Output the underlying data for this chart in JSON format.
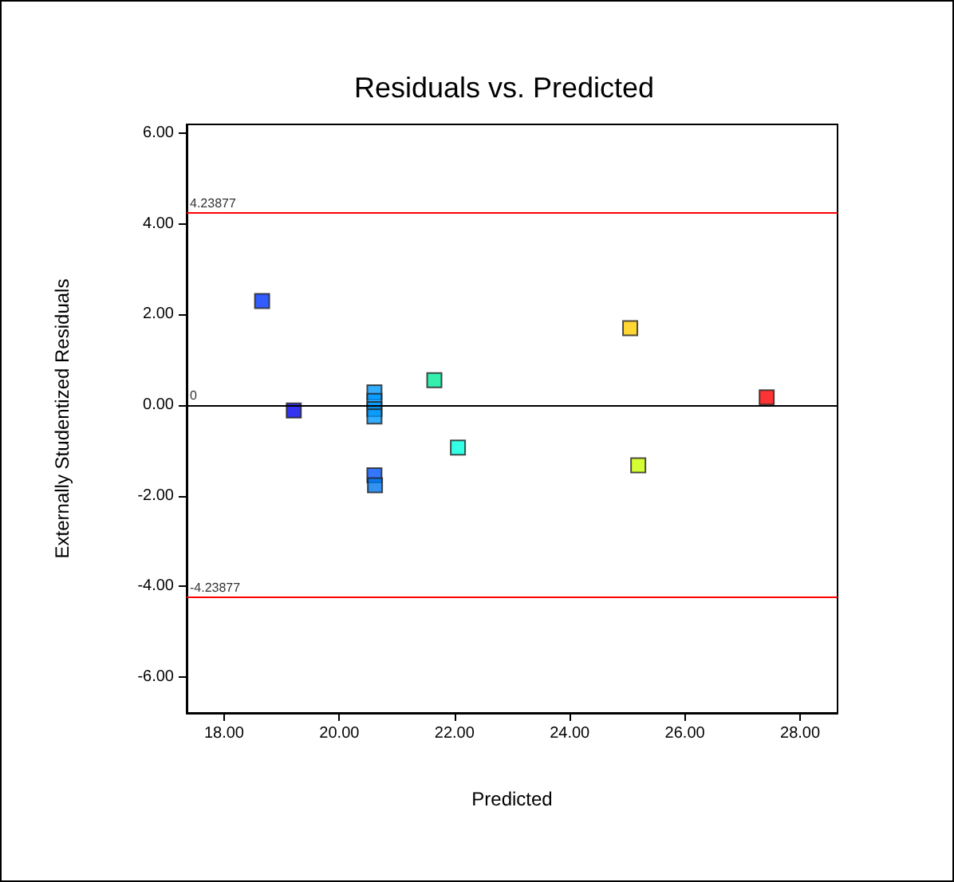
{
  "chart_data": {
    "type": "scatter",
    "title": "Residuals vs. Predicted",
    "xlabel": "Predicted",
    "ylabel": "Externally Studentized Residuals",
    "x": [
      18.66,
      19.21,
      20.61,
      20.61,
      20.61,
      20.61,
      21.65,
      22.06,
      25.05,
      27.42,
      25.19,
      20.61,
      20.62
    ],
    "values": [
      2.3,
      -0.12,
      0.28,
      0.09,
      -0.09,
      -0.25,
      0.55,
      -0.94,
      1.7,
      0.17,
      -1.33,
      -1.55,
      -1.77
    ],
    "colors": [
      "#0033ff",
      "#0000ee",
      "#0099ff",
      "#0099ff",
      "#0099ff",
      "#0099ff",
      "#00ee99",
      "#00ffdd",
      "#ffcc00",
      "#ff0000",
      "#ccff00",
      "#0055ff",
      "#0077ee"
    ],
    "marker": "square",
    "grid": false,
    "xlim": [
      17.35,
      28.65
    ],
    "xticks": [
      {
        "value": 18,
        "label": "18.00"
      },
      {
        "value": 20,
        "label": "20.00"
      },
      {
        "value": 22,
        "label": "22.00"
      },
      {
        "value": 24,
        "label": "24.00"
      },
      {
        "value": 26,
        "label": "26.00"
      },
      {
        "value": 28,
        "label": "28.00"
      }
    ],
    "ylim": [
      -6.8,
      6.2
    ],
    "yticks": [
      {
        "value": -6,
        "label": "-6.00"
      },
      {
        "value": -4,
        "label": "-4.00"
      },
      {
        "value": -2,
        "label": "-2.00"
      },
      {
        "value": 0,
        "label": "0.00"
      },
      {
        "value": 2,
        "label": "2.00"
      },
      {
        "value": 4,
        "label": "4.00"
      },
      {
        "value": 6,
        "label": "6.00"
      }
    ],
    "ref_lines": [
      {
        "axis": "y",
        "value": 4.23877,
        "label": "4.23877",
        "color": "#ff0000"
      },
      {
        "axis": "y",
        "value": 0,
        "label": "0",
        "color": "#000000"
      },
      {
        "axis": "y",
        "value": -4.23877,
        "label": "-4.23877",
        "color": "#ff0000"
      }
    ]
  }
}
